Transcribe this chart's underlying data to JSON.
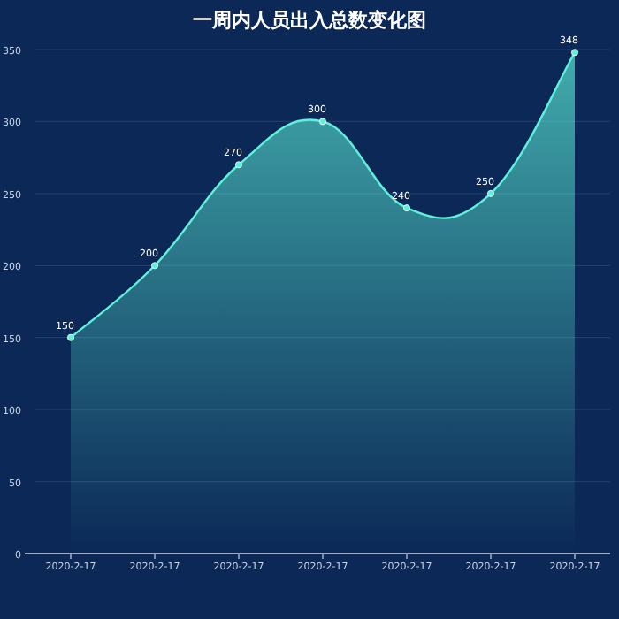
{
  "chart_data": {
    "type": "area",
    "title": "一周内人员出入总数变化图",
    "categories": [
      "2020-2-17",
      "2020-2-17",
      "2020-2-17",
      "2020-2-17",
      "2020-2-17",
      "2020-2-17",
      "2020-2-17"
    ],
    "series": [
      {
        "color": "#5ef2da",
        "values": [
          150,
          200,
          270,
          300,
          240,
          250,
          348
        ]
      }
    ],
    "ylim": [
      0,
      350
    ],
    "yticks": [
      0,
      50,
      100,
      150,
      200,
      250,
      300,
      350
    ],
    "grid": "y",
    "marker": "circle",
    "line_style": "solid",
    "data_labels": true
  }
}
